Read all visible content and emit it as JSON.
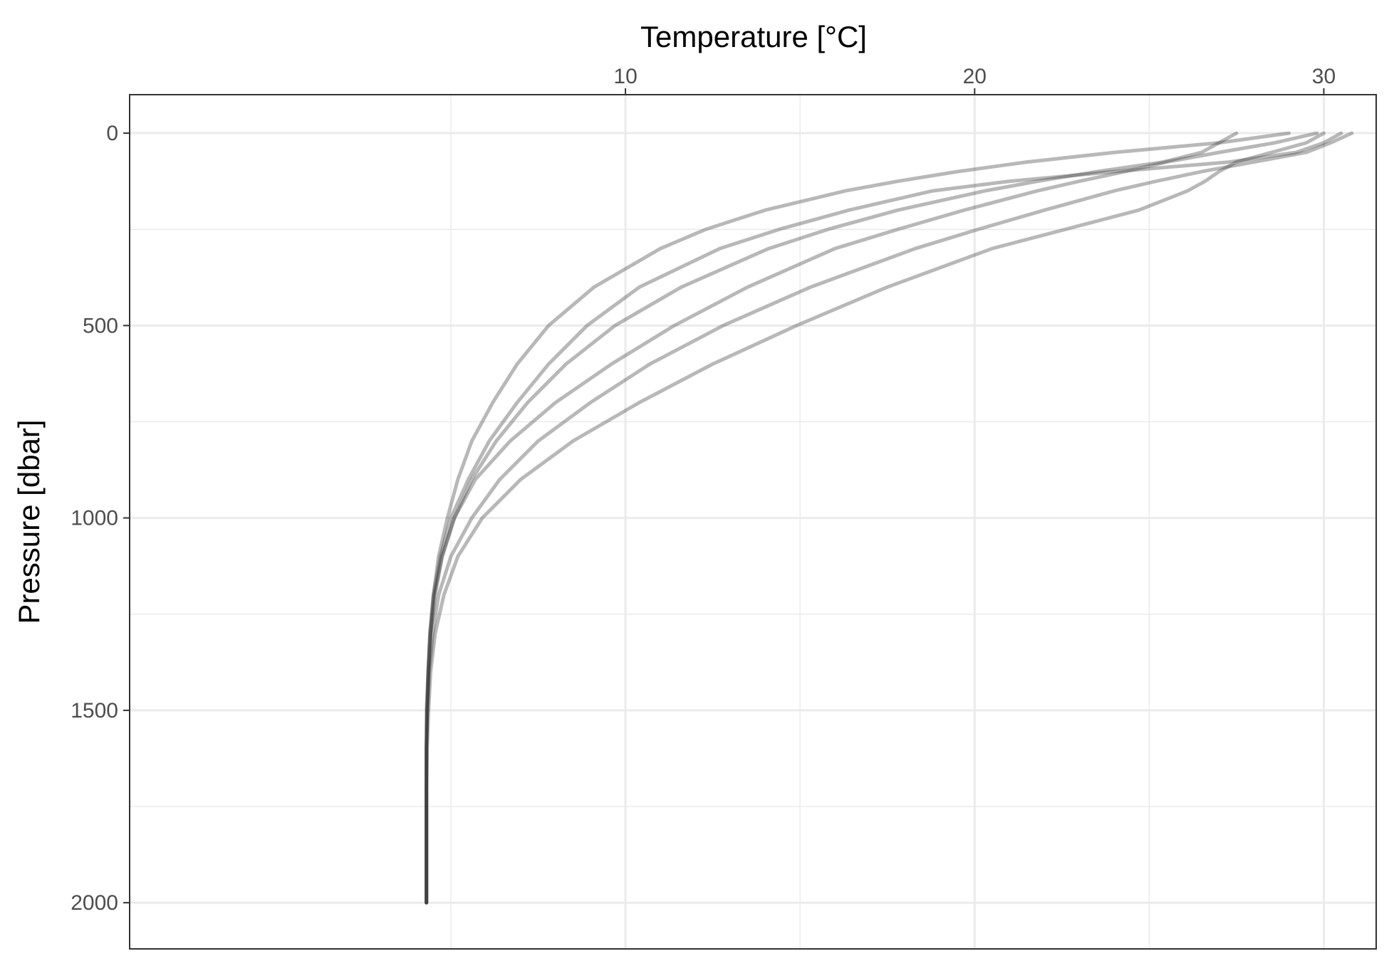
{
  "chart_data": {
    "type": "line",
    "title": "",
    "xlabel": "Temperature [°C]",
    "ylabel": "Pressure [dbar]",
    "x_axis_position": "top",
    "y_axis_reversed": true,
    "xlim": [
      -4.2,
      31.5
    ],
    "ylim": [
      2120,
      -100
    ],
    "x_ticks": [
      10,
      20,
      30
    ],
    "x_tick_labels": [
      "10",
      "20",
      "30"
    ],
    "y_ticks": [
      0,
      500,
      1000,
      1500,
      2000
    ],
    "y_tick_labels": [
      "0",
      "500",
      "1000",
      "1500",
      "2000"
    ],
    "grid": true,
    "legend": "none",
    "colors": {
      "line": "#333333",
      "grid": "#ebebeb",
      "panel_border": "#333333"
    },
    "profile_pressure": [
      0,
      25,
      50,
      75,
      100,
      125,
      150,
      200,
      250,
      300,
      400,
      500,
      600,
      700,
      800,
      900,
      1000,
      1100,
      1200,
      1300,
      1400,
      1500,
      1600,
      1700,
      1800,
      1900,
      2000
    ],
    "series": [
      {
        "values": [
          30.5,
          30.0,
          29.2,
          27.3,
          24.0,
          21.0,
          18.8,
          16.4,
          14.4,
          12.7,
          10.4,
          8.9,
          7.8,
          6.9,
          6.1,
          5.5,
          5.0,
          4.7,
          4.5,
          4.4,
          4.35,
          4.3,
          4.3,
          4.3,
          4.3,
          4.3,
          4.3
        ]
      },
      {
        "values": [
          29.8,
          28.6,
          27.0,
          25.5,
          24.3,
          23.0,
          21.8,
          19.7,
          17.8,
          16.0,
          13.5,
          11.4,
          9.6,
          8.0,
          6.7,
          5.7,
          5.1,
          4.75,
          4.55,
          4.42,
          4.35,
          4.32,
          4.3,
          4.3,
          4.3,
          4.3,
          4.3
        ]
      },
      {
        "values": [
          30.0,
          29.5,
          28.5,
          27.5,
          27.0,
          26.6,
          26.1,
          24.7,
          22.6,
          20.5,
          17.5,
          14.9,
          12.5,
          10.4,
          8.5,
          7.0,
          5.9,
          5.2,
          4.8,
          4.55,
          4.42,
          4.36,
          4.32,
          4.3,
          4.3,
          4.3,
          4.3
        ]
      },
      {
        "values": [
          29.0,
          27.0,
          24.0,
          21.5,
          19.5,
          17.8,
          16.3,
          14.0,
          12.3,
          11.0,
          9.1,
          7.8,
          6.9,
          6.2,
          5.6,
          5.2,
          4.9,
          4.65,
          4.5,
          4.4,
          4.35,
          4.32,
          4.3,
          4.3,
          4.3,
          4.3,
          4.3
        ]
      },
      {
        "values": [
          30.8,
          30.2,
          29.5,
          28.0,
          26.5,
          25.2,
          24.0,
          22.0,
          20.1,
          18.3,
          15.3,
          12.8,
          10.7,
          9.0,
          7.5,
          6.4,
          5.6,
          5.0,
          4.65,
          4.48,
          4.38,
          4.33,
          4.3,
          4.3,
          4.3,
          4.3,
          4.3
        ]
      },
      {
        "values": [
          27.5,
          27.0,
          26.5,
          25.4,
          23.5,
          21.8,
          20.3,
          17.8,
          15.8,
          14.1,
          11.6,
          9.7,
          8.3,
          7.2,
          6.3,
          5.6,
          5.1,
          4.75,
          4.52,
          4.42,
          4.36,
          4.32,
          4.3,
          4.3,
          4.3,
          4.3,
          4.3
        ]
      }
    ]
  }
}
